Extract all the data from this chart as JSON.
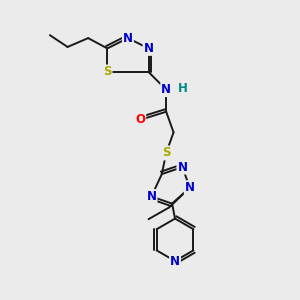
{
  "bg_color": "#ebebeb",
  "atom_colors": {
    "C": "#000000",
    "N": "#0000cc",
    "S": "#aaaa00",
    "O": "#ff0000",
    "H": "#008888"
  },
  "lw": 1.4,
  "fs": 8.5
}
